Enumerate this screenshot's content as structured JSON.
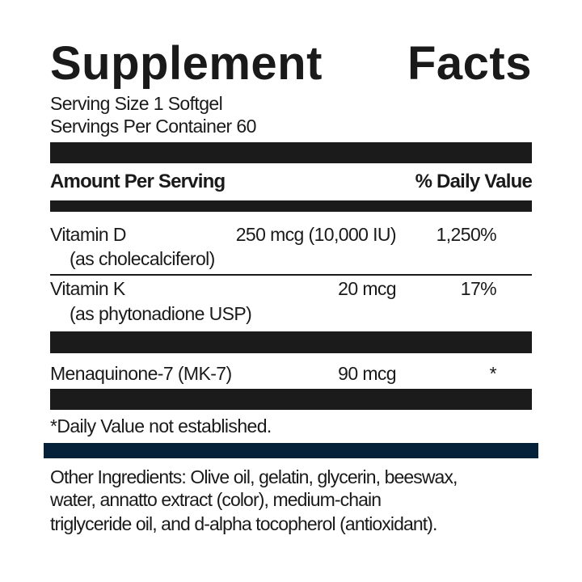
{
  "title": {
    "word1": "Supplement",
    "word2": "Facts"
  },
  "serving_size": "Serving Size 1 Softgel",
  "servings_per_container": "Servings Per Container 60",
  "header": {
    "amount": "Amount Per Serving",
    "daily_value": "% Daily Value"
  },
  "rows": [
    {
      "name": "Vitamin D",
      "source": "(as cholecalciferol)",
      "amount": "250 mcg (10,000 IU)",
      "dv": "1,250%"
    },
    {
      "name": "Vitamin K",
      "source": "(as phytonadione USP)",
      "amount": "20 mcg",
      "dv": "17%"
    },
    {
      "name": "Menaquinone-7 (MK-7)",
      "amount": "90 mcg",
      "dv": "*"
    }
  ],
  "footnote": "*Daily Value not established.",
  "other_ingredients": [
    "Other Ingredients: Olive oil, gelatin, glycerin, beeswax,",
    "water, annatto extract (color), medium-chain",
    "triglyceride oil, and d-alpha tocopherol (antioxidant)."
  ],
  "colors": {
    "text": "#1a1a1a",
    "rule": "#1b1b1b",
    "accent_rule": "#05213a"
  }
}
